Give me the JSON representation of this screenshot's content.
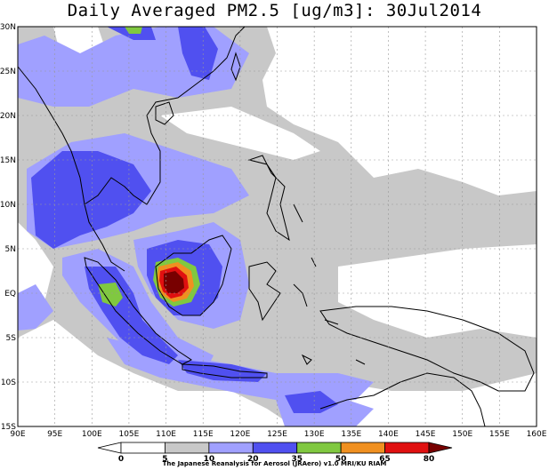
{
  "title": "Daily Averaged PM2.5 [ug/m3]: 30Jul2014",
  "credit": "The Japanese Reanalysis for Aerosol (JRAero) v1.0 MRI/KU RIAM",
  "lon_labels": [
    "90E",
    "95E",
    "100E",
    "105E",
    "110E",
    "115E",
    "120E",
    "125E",
    "130E",
    "135E",
    "140E",
    "145E",
    "150E",
    "155E",
    "160E"
  ],
  "lat_labels": [
    "30N",
    "25N",
    "20N",
    "15N",
    "10N",
    "5N",
    "EQ",
    "5S",
    "10S",
    "15S"
  ],
  "colorbar": {
    "labels": [
      "0",
      "5",
      "10",
      "20",
      "35",
      "50",
      "65",
      "80"
    ],
    "colors": [
      "#ffffff",
      "#ffffff",
      "#c8c8c8",
      "#a0a0ff",
      "#5050f0",
      "#80c840",
      "#f09020",
      "#e01010",
      "#780000"
    ]
  },
  "map_colors": {
    "light_gray": "#c8c8c8",
    "light_blue": "#a0a0ff",
    "blue": "#5050f0",
    "green": "#80c840",
    "orange": "#f09020",
    "red": "#e01010",
    "dark_red": "#780000",
    "coast": "#000000"
  }
}
